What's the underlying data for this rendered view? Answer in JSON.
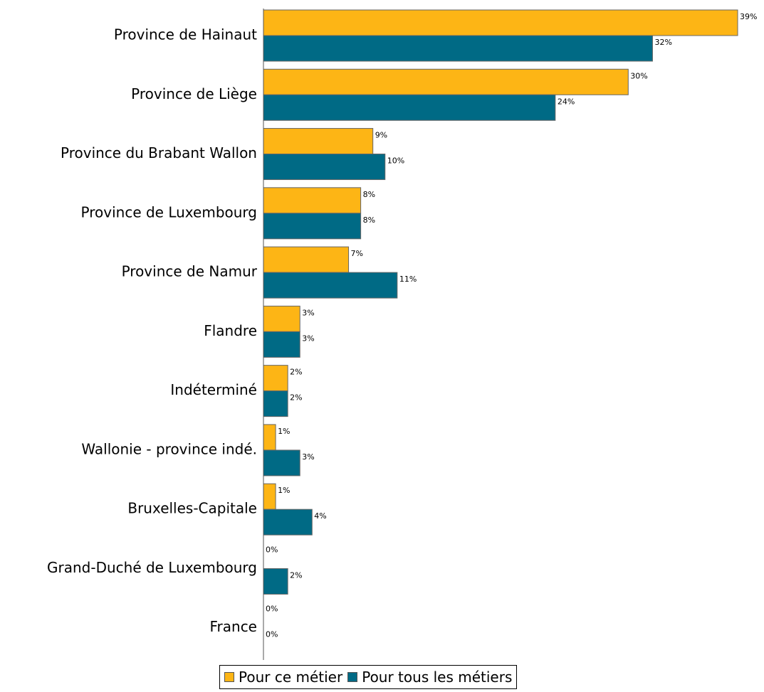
{
  "chart_data": {
    "type": "bar",
    "orientation": "horizontal",
    "categories": [
      "Province de Hainaut",
      "Province de Liège",
      "Province du Brabant Wallon",
      "Province de Luxembourg",
      "Province de Namur",
      "Flandre",
      "Indéterminé",
      "Wallonie - province indé.",
      "Bruxelles-Capitale",
      "Grand-Duché de Luxembourg",
      "France"
    ],
    "series": [
      {
        "name": "Pour ce métier",
        "color": "#FDB515",
        "values": [
          39,
          30,
          9,
          8,
          7,
          3,
          2,
          1,
          1,
          0,
          0
        ],
        "labels": [
          "39%",
          "30%",
          "9%",
          "8%",
          "7%",
          "3%",
          "2%",
          "1%",
          "1%",
          "0%",
          "0%"
        ]
      },
      {
        "name": "Pour tous les métiers",
        "color": "#006A85",
        "values": [
          32,
          24,
          10,
          8,
          11,
          3,
          2,
          3,
          4,
          2,
          0
        ],
        "labels": [
          "32%",
          "24%",
          "10%",
          "8%",
          "11%",
          "3%",
          "2%",
          "3%",
          "4%",
          "2%",
          "0%"
        ]
      }
    ],
    "xlim": [
      0,
      39
    ],
    "unit": "%",
    "grid": false,
    "legend_position": "bottom"
  }
}
